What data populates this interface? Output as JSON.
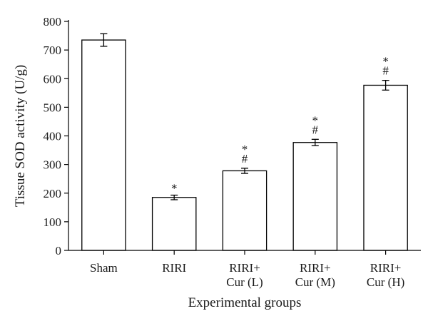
{
  "chart_data": {
    "type": "bar",
    "title": "",
    "xlabel": "Experimental groups",
    "ylabel": "Tissue SOD activity (U/g)",
    "ylim": [
      0,
      800
    ],
    "yticks": [
      0,
      100,
      200,
      300,
      400,
      500,
      600,
      700,
      800
    ],
    "grid": false,
    "bar_color": "#ffffff",
    "edge_color": "#000000",
    "categories": [
      [
        "Sham"
      ],
      [
        "RIRI"
      ],
      [
        "RIRI+",
        "Cur (L)"
      ],
      [
        "RIRI+",
        "Cur (M)"
      ],
      [
        "RIRI+",
        "Cur (H)"
      ]
    ],
    "values": [
      735,
      185,
      278,
      377,
      577
    ],
    "errors": [
      22,
      8,
      9,
      11,
      17
    ],
    "annotations": [
      [],
      [
        "*"
      ],
      [
        "*",
        "#"
      ],
      [
        "*",
        "#"
      ],
      [
        "*",
        "#"
      ]
    ]
  }
}
